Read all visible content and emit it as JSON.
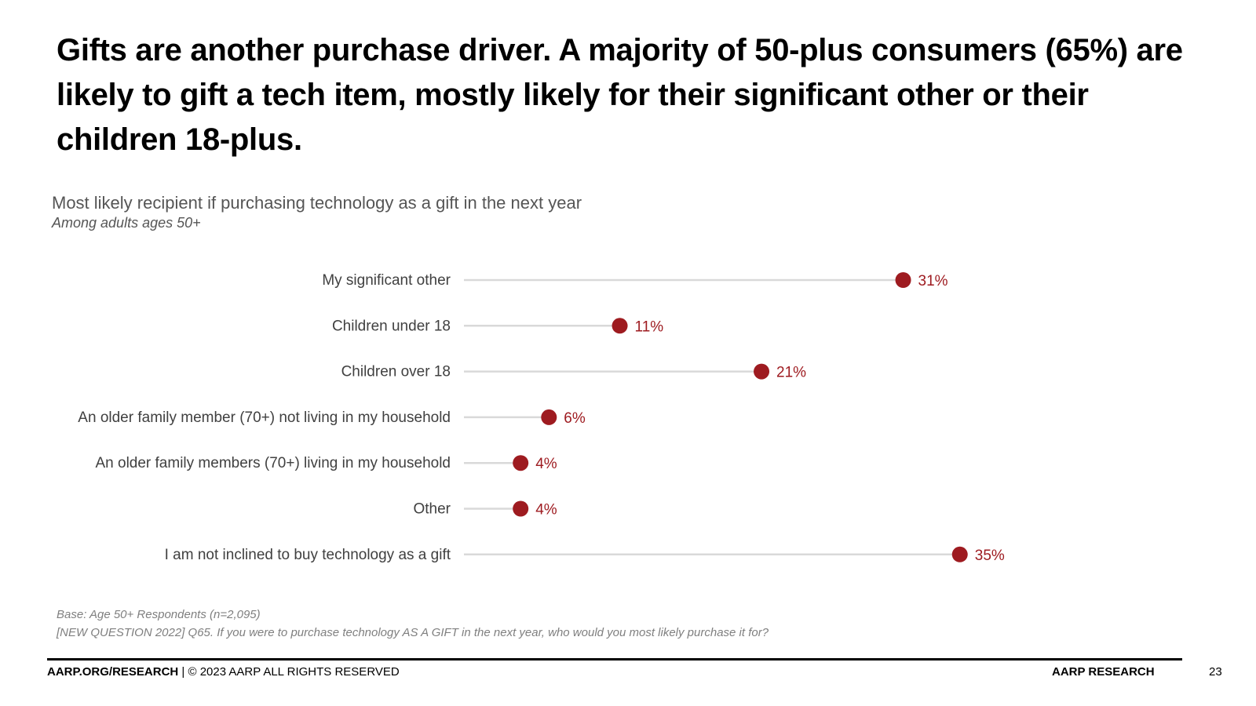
{
  "headline": "Gifts are another purchase driver. A majority of 50-plus consumers (65%) are likely to gift a tech item, mostly likely for their significant other or their children 18-plus.",
  "chart_data": {
    "type": "lollipop",
    "title": "Most likely recipient if purchasing technology as a gift in the next year",
    "subtitle": "Among adults ages 50+",
    "categories": [
      "My significant other",
      "Children under 18",
      "Children over 18",
      "An older family member (70+) not living in my household",
      "An older family members (70+) living in my household",
      "Other",
      "I am not inclined to buy technology as a gift"
    ],
    "values": [
      31,
      11,
      21,
      6,
      4,
      4,
      35
    ],
    "value_labels": [
      "31%",
      "11%",
      "21%",
      "6%",
      "4%",
      "4%",
      "35%"
    ],
    "xlim": [
      0,
      40
    ],
    "grid": false,
    "marker_color": "#9e1b20",
    "stem_color": "#d9d9d9"
  },
  "footnotes": {
    "base": "Base: Age 50+ Respondents (n=2,095)",
    "question": "[NEW QUESTION 2022] Q65. If you were to purchase technology AS A GIFT in the next year, who would you most likely purchase it for?"
  },
  "footer": {
    "site": "AARP.ORG/RESEARCH",
    "copyright": "| © 2023 AARP ALL RIGHTS RESERVED",
    "brand": "AARP RESEARCH",
    "page_number": "23"
  }
}
